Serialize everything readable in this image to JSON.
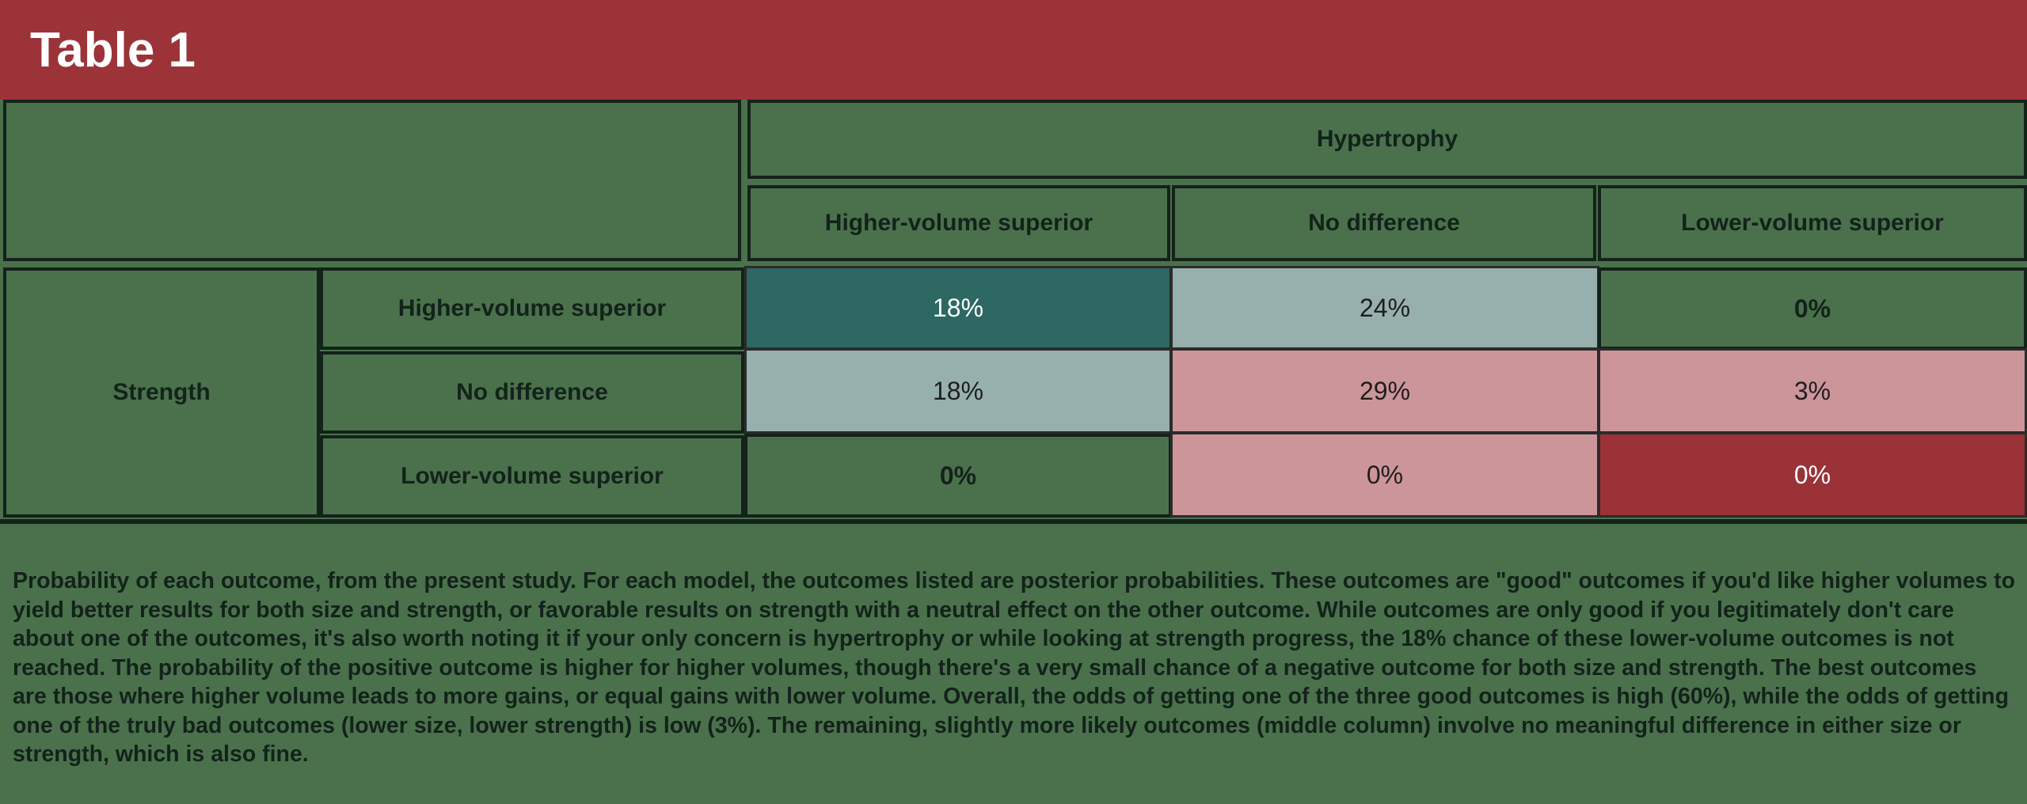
{
  "header": {
    "title": "Table 1"
  },
  "table": {
    "column_group_label": "Hypertrophy",
    "column_headers": [
      "Higher-volume superior",
      "No difference",
      "Lower-volume superior"
    ],
    "row_group_label": "Strength",
    "row_headers": [
      "Higher-volume superior",
      "No difference",
      "Lower-volume superior"
    ],
    "rows": [
      [
        "18%",
        "24%",
        "0%"
      ],
      [
        "18%",
        "29%",
        "3%"
      ],
      [
        "0%",
        "0%",
        "0%"
      ]
    ],
    "colors": {
      "teal": "#2d6862",
      "light_teal": "#97b0ad",
      "pink": "#cc9599",
      "red": "#9a3238",
      "background": "#4a714c",
      "banner": "#9b3339"
    }
  },
  "caption": "Probability of each outcome, from the present study. For each model, the outcomes listed are posterior probabilities. These outcomes are \"good\" outcomes if you'd like higher volumes to yield better results for both size and strength, or favorable results on strength with a neutral effect on the other outcome. While outcomes are only good if you legitimately don't care about one of the outcomes, it's also worth noting it if your only concern is hypertrophy or while looking at strength progress, the 18% chance of these lower-volume outcomes is not reached. The probability of the positive outcome is higher for higher volumes, though there's a very small chance of a negative outcome for both size and strength. The best outcomes are those where higher volume leads to more gains, or equal gains with lower volume. Overall, the odds of getting one of the three good outcomes is high (60%), while the odds of getting one of the truly bad outcomes (lower size, lower strength) is low (3%). The remaining, slightly more likely outcomes (middle column) involve no meaningful difference in either size or strength, which is also fine."
}
